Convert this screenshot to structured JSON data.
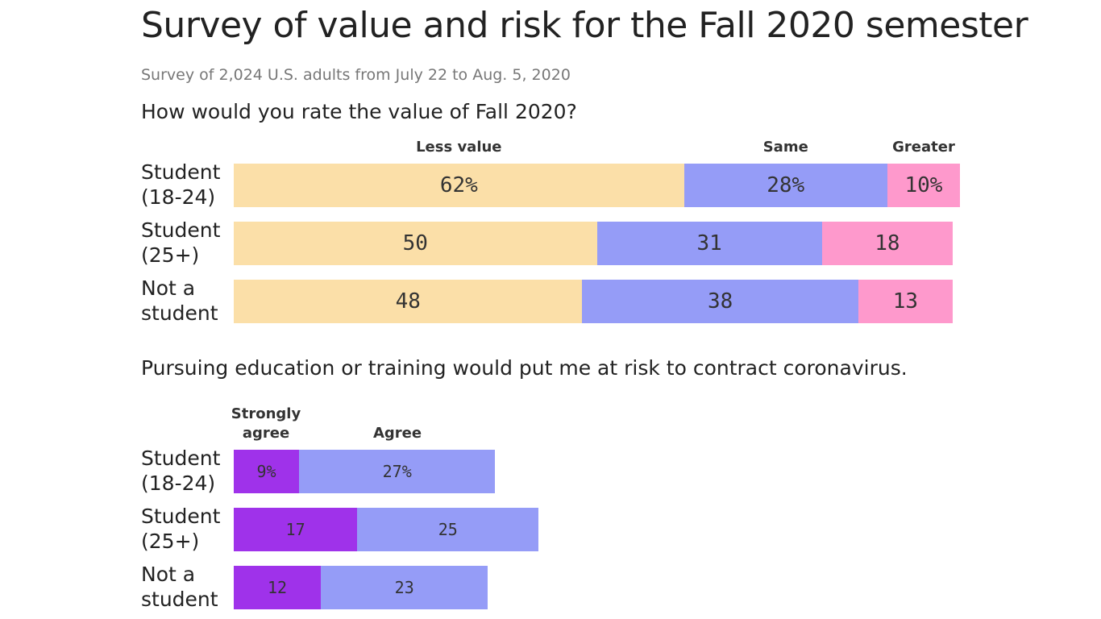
{
  "title": "Survey of value and risk for the Fall 2020 semester",
  "subtitle": "Survey of 2,024 U.S. adults from July 22 to Aug. 5, 2020",
  "chart_data": [
    {
      "type": "bar",
      "stacked": true,
      "orientation": "horizontal",
      "title": "How would you rate the value of Fall 2020?",
      "categories": [
        [
          "Student",
          "(18-24)"
        ],
        [
          "Student",
          "(25+)"
        ],
        [
          "Not a",
          "student"
        ]
      ],
      "series": [
        {
          "name": "Less value",
          "color": "#fbdfa8",
          "values": [
            62,
            50,
            48
          ],
          "labels": [
            "62%",
            "50",
            "48"
          ]
        },
        {
          "name": "Same",
          "color": "#959cf7",
          "values": [
            28,
            31,
            38
          ],
          "labels": [
            "28%",
            "31",
            "38"
          ]
        },
        {
          "name": "Greater",
          "color": "#fe99cc",
          "values": [
            10,
            18,
            13
          ],
          "labels": [
            "10%",
            "18",
            "13"
          ]
        }
      ],
      "xlim": [
        0,
        100
      ]
    },
    {
      "type": "bar",
      "stacked": true,
      "orientation": "horizontal",
      "title": "Pursuing education or training would put me at risk to contract coronavirus.",
      "categories": [
        [
          "Student",
          "(18-24)"
        ],
        [
          "Student",
          "(25+)"
        ],
        [
          "Not a",
          "student"
        ]
      ],
      "series": [
        {
          "name": "Strongly agree",
          "name_lines": [
            "Strongly",
            "agree"
          ],
          "color": "#9f32ea",
          "values": [
            9,
            17,
            12
          ],
          "labels": [
            "9%",
            "17",
            "12"
          ]
        },
        {
          "name": "Agree",
          "name_lines": [
            "Agree"
          ],
          "color": "#959cf7",
          "values": [
            27,
            25,
            23
          ],
          "labels": [
            "27%",
            "25",
            "23"
          ]
        }
      ],
      "xlim": [
        0,
        100
      ]
    }
  ]
}
